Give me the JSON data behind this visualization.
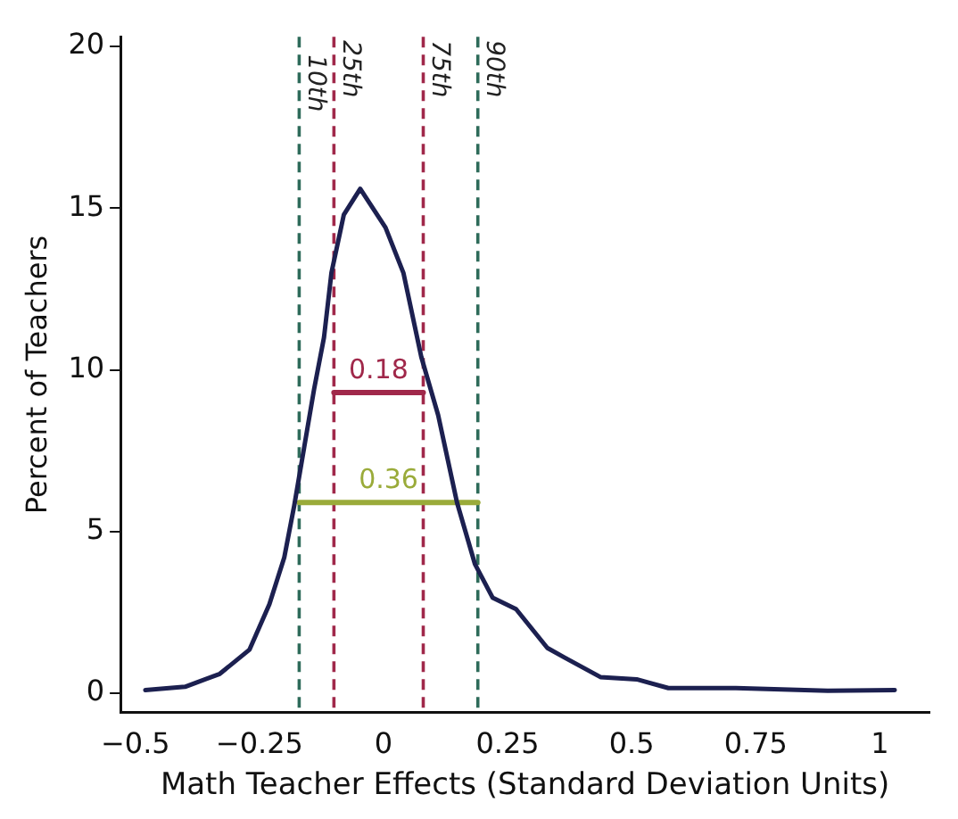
{
  "chart_data": {
    "type": "line",
    "xlabel": "Math Teacher Effects (Standard Deviation Units)",
    "ylabel": "Percent of Teachers",
    "xlim": [
      -0.53,
      1.1
    ],
    "xticks": [
      {
        "value": -0.5,
        "label": "−0.5"
      },
      {
        "value": -0.25,
        "label": "−0.25"
      },
      0,
      0.25,
      0.5,
      0.75,
      1
    ],
    "ylim": [
      -0.6,
      20.3
    ],
    "yticks": [
      0,
      5,
      10,
      15,
      20
    ],
    "grid": false,
    "legend": false,
    "marker": "none",
    "line_style": "solid",
    "series": [
      {
        "color": "#1c2050",
        "x": [
          -0.48,
          -0.4,
          -0.33,
          -0.27,
          -0.23,
          -0.2,
          -0.18,
          -0.16,
          -0.14,
          -0.12,
          -0.105,
          -0.08,
          -0.047,
          0.004,
          0.04,
          0.076,
          0.11,
          0.148,
          0.184,
          0.22,
          0.267,
          0.33,
          0.365,
          0.437,
          0.51,
          0.574,
          0.71,
          0.895,
          1.03
        ],
        "values": [
          0.1,
          0.2,
          0.6,
          1.35,
          2.75,
          4.2,
          5.8,
          7.6,
          9.4,
          11.0,
          13.0,
          14.8,
          15.6,
          14.4,
          13.0,
          10.4,
          8.6,
          5.9,
          4.0,
          2.95,
          2.6,
          1.4,
          1.1,
          0.5,
          0.43,
          0.16,
          0.16,
          0.08,
          0.1
        ]
      },
      {
        "type": "line",
        "color": "#a0284a",
        "x": [
          -0.1,
          0.08
        ],
        "values": [
          9.3,
          9.3
        ]
      },
      {
        "type": "line",
        "color": "#9aab3a",
        "x": [
          -0.17,
          0.19
        ],
        "values": [
          5.9,
          5.9
        ]
      }
    ],
    "ref_lines": [
      {
        "axis": "x",
        "value": -0.17,
        "label": "10th",
        "color": "#2e6b5a",
        "line_style": "dashed"
      },
      {
        "axis": "x",
        "value": -0.1,
        "label": "25th",
        "color": "#a0284a",
        "line_style": "dashed"
      },
      {
        "axis": "x",
        "value": 0.08,
        "label": "75th",
        "color": "#a0284a",
        "line_style": "dashed"
      },
      {
        "axis": "x",
        "value": 0.19,
        "label": "90th",
        "color": "#2e6b5a",
        "line_style": "dashed"
      }
    ],
    "annotations": [
      "0.18",
      "0.36"
    ]
  }
}
